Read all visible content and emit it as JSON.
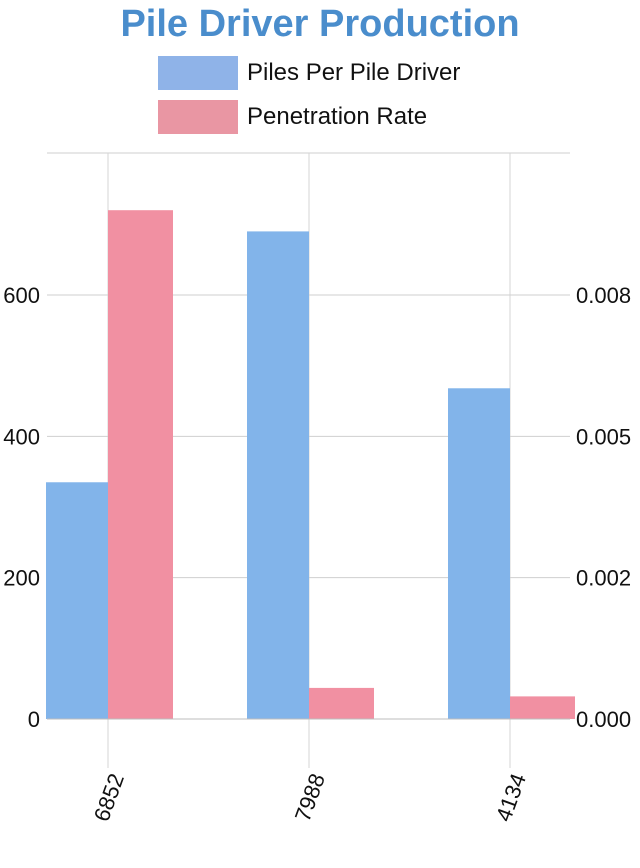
{
  "chart_data": {
    "type": "bar",
    "title": "Pile Driver Production",
    "categories": [
      "6852",
      "7988",
      "4134"
    ],
    "series": [
      {
        "name": "Piles Per Pile Driver",
        "axis": "left",
        "color": "#82b4ea",
        "legend_color": "#8fb3e8",
        "values": [
          335,
          690,
          468
        ]
      },
      {
        "name": "Penetration Rate",
        "axis": "right",
        "color": "#f190a2",
        "legend_color": "#e996a3",
        "values": [
          0.009,
          0.00055,
          0.0004
        ]
      }
    ],
    "y_left": {
      "ticks": [
        0,
        200,
        400,
        600
      ],
      "tick_labels": [
        "0",
        "200",
        "400",
        "600"
      ],
      "ylim": [
        0,
        800
      ]
    },
    "y_right": {
      "ticks": [
        0,
        0.0025,
        0.005,
        0.0075
      ],
      "tick_labels": [
        "0.000",
        "0.002",
        "0.005",
        "0.008"
      ],
      "ylim": [
        0,
        0.01
      ]
    },
    "grid": true,
    "legend_position": "top"
  }
}
